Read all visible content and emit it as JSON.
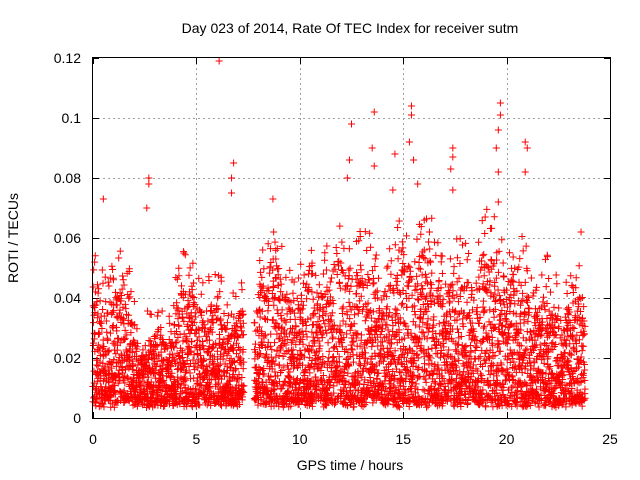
{
  "chart_data": {
    "type": "scatter",
    "title": "Day 023 of 2014, Rate Of TEC Index for receiver sutm",
    "xlabel": "GPS time / hours",
    "ylabel": "ROTI / TECUs",
    "xlim": [
      0,
      25
    ],
    "ylim": [
      0,
      0.12
    ],
    "x_ticks": [
      0,
      5,
      10,
      15,
      20,
      25
    ],
    "x_tick_labels": [
      "0",
      "5",
      "10",
      "15",
      "20",
      "25"
    ],
    "y_ticks": [
      0,
      0.02,
      0.04,
      0.06,
      0.08,
      0.1,
      0.12
    ],
    "y_tick_labels": [
      "0",
      "0.02",
      "0.04",
      "0.06",
      "0.08",
      "0.1",
      "0.12"
    ],
    "grid": true,
    "marker": "+",
    "color": "#ff0000",
    "coverage": {
      "segments": [
        [
          0.0,
          7.3
        ],
        [
          7.8,
          23.8
        ]
      ],
      "baseline_range": [
        0.004,
        0.05
      ]
    },
    "series": [
      {
        "name": "sutm",
        "notable_points": [
          {
            "x": 0.5,
            "y": 0.073
          },
          {
            "x": 2.7,
            "y": 0.08
          },
          {
            "x": 2.7,
            "y": 0.078
          },
          {
            "x": 2.6,
            "y": 0.07
          },
          {
            "x": 6.1,
            "y": 0.119
          },
          {
            "x": 6.8,
            "y": 0.085
          },
          {
            "x": 6.7,
            "y": 0.08
          },
          {
            "x": 6.7,
            "y": 0.075
          },
          {
            "x": 8.7,
            "y": 0.073
          },
          {
            "x": 12.5,
            "y": 0.098
          },
          {
            "x": 12.4,
            "y": 0.086
          },
          {
            "x": 12.3,
            "y": 0.08
          },
          {
            "x": 13.6,
            "y": 0.102
          },
          {
            "x": 13.5,
            "y": 0.09
          },
          {
            "x": 13.6,
            "y": 0.084
          },
          {
            "x": 14.6,
            "y": 0.088
          },
          {
            "x": 14.5,
            "y": 0.076
          },
          {
            "x": 15.4,
            "y": 0.104
          },
          {
            "x": 15.4,
            "y": 0.101
          },
          {
            "x": 15.3,
            "y": 0.092
          },
          {
            "x": 15.5,
            "y": 0.086
          },
          {
            "x": 15.7,
            "y": 0.078
          },
          {
            "x": 17.4,
            "y": 0.09
          },
          {
            "x": 17.4,
            "y": 0.087
          },
          {
            "x": 17.3,
            "y": 0.083
          },
          {
            "x": 17.4,
            "y": 0.076
          },
          {
            "x": 19.7,
            "y": 0.105
          },
          {
            "x": 19.7,
            "y": 0.101
          },
          {
            "x": 19.6,
            "y": 0.096
          },
          {
            "x": 19.5,
            "y": 0.09
          },
          {
            "x": 19.6,
            "y": 0.082
          },
          {
            "x": 19.6,
            "y": 0.072
          },
          {
            "x": 20.9,
            "y": 0.092
          },
          {
            "x": 21.0,
            "y": 0.09
          },
          {
            "x": 20.9,
            "y": 0.082
          },
          {
            "x": 23.6,
            "y": 0.062
          }
        ]
      }
    ]
  }
}
